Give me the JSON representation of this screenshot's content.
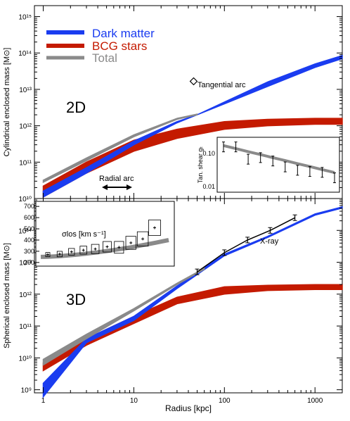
{
  "colors": {
    "dark_matter": "#1a3cf0",
    "bcg": "#c41a00",
    "total": "#8a8a8a",
    "xray": "#000000"
  },
  "legend": {
    "items": [
      {
        "label": "Dark matter",
        "color": "#1a3cf0"
      },
      {
        "label": "BCG stars",
        "color": "#c41a00"
      },
      {
        "label": "Total",
        "color": "#8a8a8a"
      }
    ]
  },
  "chart_data": [
    {
      "type": "area",
      "panel_label": "2D",
      "ylabel": "Cylindrical enclosed mass [M⊙]",
      "xscale": "log",
      "yscale": "log",
      "xlim": [
        0.8,
        2000
      ],
      "ylim": [
        10000000000.0,
        2000000000000000.0
      ],
      "y_ticks": [
        "10¹⁰",
        "10¹¹",
        "10¹²",
        "10¹³",
        "10¹⁴",
        "10¹⁵"
      ],
      "series": [
        {
          "name": "Dark matter",
          "x": [
            1,
            3,
            10,
            30,
            50,
            100,
            300,
            1000,
            2000
          ],
          "y_low": [
            11000000000.0,
            50000000000.0,
            300000000000.0,
            1200000000000.0,
            2000000000000.0,
            4000000000000.0,
            12000000000000.0,
            40000000000000.0,
            70000000000000.0
          ],
          "y_high": [
            16000000000.0,
            70000000000.0,
            380000000000.0,
            1300000000000.0,
            2000000000000.0,
            4500000000000.0,
            16000000000000.0,
            50000000000000.0,
            85000000000000.0
          ]
        },
        {
          "name": "BCG stars",
          "x": [
            1,
            3,
            10,
            30,
            100,
            300,
            1000,
            2000
          ],
          "y_low": [
            11000000000.0,
            50000000000.0,
            200000000000.0,
            450000000000.0,
            800000000000.0,
            1000000000000.0,
            1100000000000.0,
            1100000000000.0
          ],
          "y_high": [
            22000000000.0,
            100000000000.0,
            400000000000.0,
            800000000000.0,
            1300000000000.0,
            1500000000000.0,
            1600000000000.0,
            1600000000000.0
          ]
        },
        {
          "name": "Total",
          "x": [
            1,
            3,
            10,
            30,
            50
          ],
          "y_low": [
            28000000000.0,
            110000000000.0,
            500000000000.0,
            1500000000000.0,
            2000000000000.0
          ],
          "y_high": [
            32000000000.0,
            130000000000.0,
            560000000000.0,
            1600000000000.0,
            2100000000000.0
          ]
        }
      ],
      "annotations": [
        {
          "text": "Tangential arc",
          "x": 50,
          "y": 2000000000000.0
        },
        {
          "text": "Radial arc",
          "x": 10,
          "y": 16000000000.0
        }
      ],
      "inset": {
        "ylabel": "Tan. shear  gₜ",
        "y_ticks": [
          "0.01",
          "0.10"
        ],
        "points": [
          0.2,
          0.2,
          0.08,
          0.09,
          0.07,
          0.045,
          0.035,
          0.032,
          0.03,
          0.02
        ]
      }
    },
    {
      "type": "area",
      "panel_label": "3D",
      "xlabel": "Radius [kpc]",
      "ylabel": "Spherical enclosed mass [M⊙]",
      "xscale": "log",
      "yscale": "log",
      "xlim": [
        0.8,
        2000
      ],
      "ylim": [
        800000000.0,
        1000000000000000.0
      ],
      "x_ticks": [
        "1",
        "10",
        "100",
        "1000"
      ],
      "y_ticks": [
        "10⁹",
        "10¹⁰",
        "10¹¹",
        "10¹²",
        "10¹³",
        "10¹⁴"
      ],
      "series": [
        {
          "name": "Dark matter",
          "x": [
            1,
            3,
            10,
            30,
            100,
            300,
            1000,
            2000
          ],
          "y_low": [
            600000000.0,
            30000000000.0,
            150000000000.0,
            1500000000000.0,
            16000000000000.0,
            60000000000000.0,
            300000000000000.0,
            500000000000000.0
          ],
          "y_high": [
            1600000000.0,
            40000000000.0,
            200000000000.0,
            1800000000000.0,
            18000000000000.0,
            65000000000000.0,
            330000000000000.0,
            550000000000000.0
          ]
        },
        {
          "name": "BCG stars",
          "x": [
            1,
            3,
            10,
            30,
            100,
            300,
            1000,
            2000
          ],
          "y_low": [
            4000000000.0,
            25000000000.0,
            120000000000.0,
            500000000000.0,
            1000000000000.0,
            1300000000000.0,
            1400000000000.0,
            1400000000000.0
          ],
          "y_high": [
            7000000000.0,
            40000000000.0,
            200000000000.0,
            800000000000.0,
            1700000000000.0,
            1900000000000.0,
            2000000000000.0,
            2000000000000.0
          ]
        },
        {
          "name": "Total",
          "x": [
            1,
            3,
            10,
            30,
            60
          ],
          "y_low": [
            6000000000.0,
            40000000000.0,
            300000000000.0,
            2000000000000.0,
            6000000000000.0
          ],
          "y_high": [
            9000000000.0,
            55000000000.0,
            350000000000.0,
            2200000000000.0,
            6500000000000.0
          ]
        }
      ],
      "xray": {
        "label": "X-ray",
        "x": [
          50,
          100,
          180,
          320,
          600
        ],
        "y": [
          5000000000000.0,
          20000000000000.0,
          50000000000000.0,
          100000000000000.0,
          250000000000000.0
        ]
      },
      "inset": {
        "label": "σlos [km s⁻¹]",
        "y_ticks": [
          "200",
          "300",
          "400",
          "500",
          "600",
          "700"
        ],
        "points": [
          270,
          275,
          295,
          310,
          320,
          340,
          335,
          375,
          410,
          510
        ]
      }
    }
  ]
}
